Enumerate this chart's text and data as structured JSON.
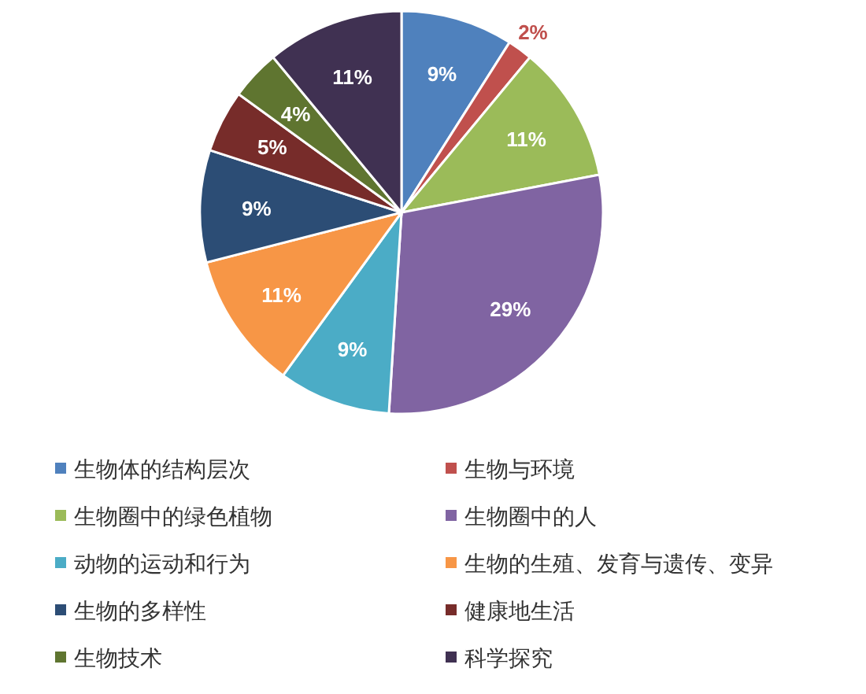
{
  "chart_data": {
    "type": "pie",
    "categories": [
      "生物体的结构层次",
      "生物与环境",
      "生物圈中的绿色植物",
      "生物圈中的人",
      "动物的运动和行为",
      "生物的生殖、发育与遗传、变异",
      "生物的多样性",
      "健康地生活",
      "生物技术",
      "科学探究"
    ],
    "values": [
      9,
      2,
      11,
      29,
      9,
      11,
      9,
      5,
      4,
      11
    ],
    "value_labels": [
      "9%",
      "2%",
      "11%",
      "29%",
      "9%",
      "11%",
      "9%",
      "5%",
      "4%",
      "11%"
    ],
    "colors": [
      "#4f81bd",
      "#c0504d",
      "#9bbb59",
      "#8064a2",
      "#4bacc6",
      "#f79646",
      "#2c4d75",
      "#772c2a",
      "#5f7530",
      "#403152"
    ],
    "legend": "bottom"
  }
}
